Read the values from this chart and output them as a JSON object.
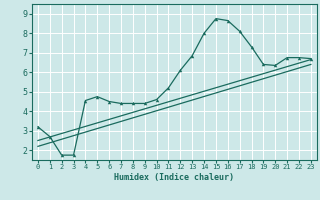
{
  "title": "",
  "xlabel": "Humidex (Indice chaleur)",
  "bg_color": "#cde8e8",
  "grid_color": "#ffffff",
  "line_color": "#1a6b5e",
  "xlim": [
    -0.5,
    23.5
  ],
  "ylim": [
    1.5,
    9.5
  ],
  "xticks": [
    0,
    1,
    2,
    3,
    4,
    5,
    6,
    7,
    8,
    9,
    10,
    11,
    12,
    13,
    14,
    15,
    16,
    17,
    18,
    19,
    20,
    21,
    22,
    23
  ],
  "yticks": [
    2,
    3,
    4,
    5,
    6,
    7,
    8,
    9
  ],
  "curve_x": [
    0,
    1,
    2,
    3,
    4,
    5,
    6,
    7,
    8,
    9,
    10,
    11,
    12,
    13,
    14,
    15,
    16,
    17,
    18,
    19,
    20,
    21,
    22,
    23
  ],
  "curve_y": [
    3.2,
    2.7,
    1.75,
    1.75,
    4.55,
    4.75,
    4.5,
    4.4,
    4.4,
    4.4,
    4.6,
    5.2,
    6.1,
    6.85,
    8.0,
    8.75,
    8.65,
    8.1,
    7.3,
    6.4,
    6.35,
    6.75,
    6.75,
    6.7
  ],
  "line3_x": [
    0,
    23
  ],
  "line3_y": [
    2.2,
    6.4
  ],
  "line4_x": [
    0,
    23
  ],
  "line4_y": [
    2.5,
    6.65
  ]
}
